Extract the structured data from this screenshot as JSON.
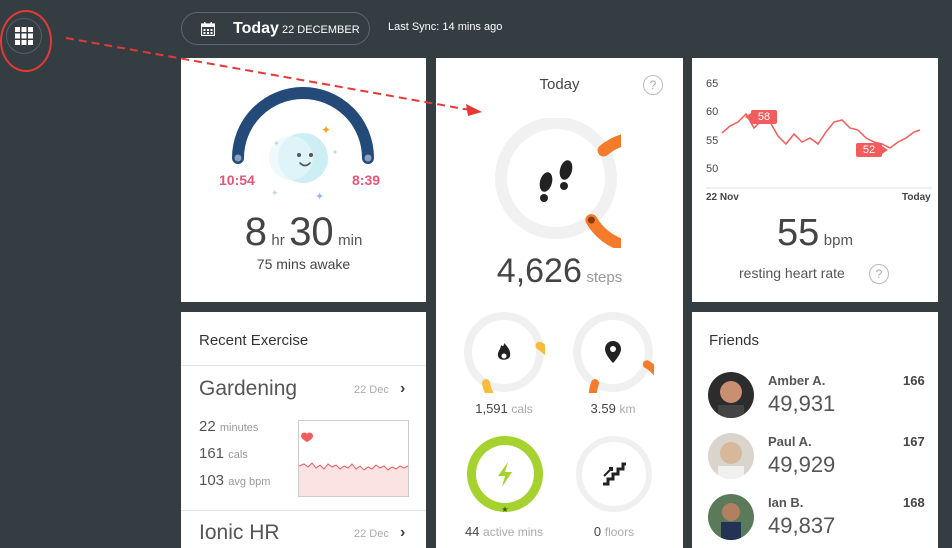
{
  "header": {
    "date_main": "Today",
    "date_sub": "22 DECEMBER",
    "last_sync": "Last Sync: 14 mins ago"
  },
  "sleep": {
    "start": "10:54",
    "end": "8:39",
    "hours": "8",
    "hours_unit": "hr",
    "minutes": "30",
    "minutes_unit": "min",
    "awake": "75 mins awake"
  },
  "steps": {
    "title": "Today",
    "value": "4,626",
    "unit": "steps",
    "help": "?"
  },
  "calories": {
    "value": "1,591",
    "unit": "cals"
  },
  "distance": {
    "value": "3.59",
    "unit": "km"
  },
  "active": {
    "value": "44",
    "unit": "active mins"
  },
  "floors": {
    "value": "0",
    "unit": "floors"
  },
  "heart": {
    "y_ticks": [
      "65",
      "60",
      "55",
      "50"
    ],
    "x_start": "22 Nov",
    "x_end": "Today",
    "marker_high": "58",
    "marker_low": "52",
    "value": "55",
    "unit": "bpm",
    "label": "resting heart rate",
    "help": "?",
    "accent": "#f25c5c"
  },
  "exercise": {
    "title": "Recent Exercise",
    "items": [
      {
        "name": "Gardening",
        "date": "22 Dec",
        "minutes": "22",
        "minutes_unit": "minutes",
        "cals": "161",
        "cals_unit": "cals",
        "bpm": "103",
        "bpm_unit": "avg bpm"
      },
      {
        "name": "Ionic HR",
        "date": "22 Dec"
      }
    ]
  },
  "friends": {
    "title": "Friends",
    "list": [
      {
        "name": "Amber A.",
        "steps": "49,931",
        "rank": "166"
      },
      {
        "name": "Paul A.",
        "steps": "49,929",
        "rank": "167"
      },
      {
        "name": "Ian B.",
        "steps": "49,837",
        "rank": "168"
      }
    ]
  },
  "colors": {
    "background": "#343d42",
    "steps_orange": "#f47b2a",
    "calories_yellow": "#f7bc3a",
    "active_green": "#a5d22e",
    "sleep_navy": "#244a7a",
    "sleep_time_pink": "#e8547a"
  }
}
